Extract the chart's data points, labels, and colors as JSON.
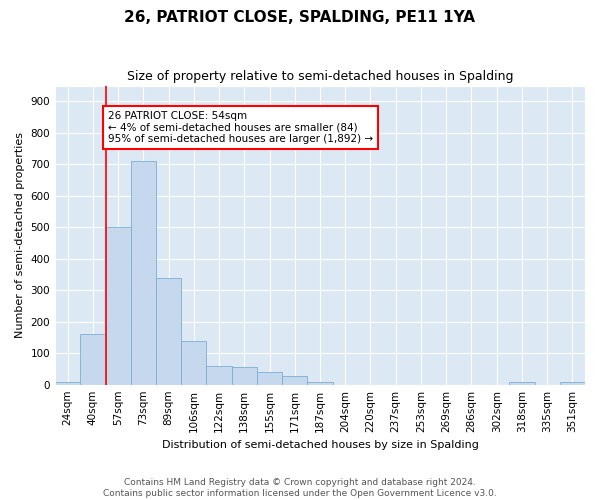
{
  "title": "26, PATRIOT CLOSE, SPALDING, PE11 1YA",
  "subtitle": "Size of property relative to semi-detached houses in Spalding",
  "xlabel": "Distribution of semi-detached houses by size in Spalding",
  "ylabel": "Number of semi-detached properties",
  "categories": [
    "24sqm",
    "40sqm",
    "57sqm",
    "73sqm",
    "89sqm",
    "106sqm",
    "122sqm",
    "138sqm",
    "155sqm",
    "171sqm",
    "187sqm",
    "204sqm",
    "220sqm",
    "237sqm",
    "253sqm",
    "269sqm",
    "286sqm",
    "302sqm",
    "318sqm",
    "335sqm",
    "351sqm"
  ],
  "values": [
    10,
    160,
    500,
    710,
    340,
    140,
    60,
    55,
    40,
    28,
    10,
    0,
    0,
    0,
    0,
    0,
    0,
    0,
    7,
    0,
    7
  ],
  "bar_color": "#c5d8ed",
  "bar_edge_color": "#7aafd4",
  "annotation_line1": "26 PATRIOT CLOSE: 54sqm",
  "annotation_line2": "← 4% of semi-detached houses are smaller (84)",
  "annotation_line3": "95% of semi-detached houses are larger (1,892) →",
  "annotation_box_color": "white",
  "annotation_border_color": "red",
  "redline_color": "red",
  "footer_line1": "Contains HM Land Registry data © Crown copyright and database right 2024.",
  "footer_line2": "Contains public sector information licensed under the Open Government Licence v3.0.",
  "ylim": [
    0,
    950
  ],
  "yticks": [
    0,
    100,
    200,
    300,
    400,
    500,
    600,
    700,
    800,
    900
  ],
  "background_color": "#dce9f5",
  "title_fontsize": 11,
  "subtitle_fontsize": 9,
  "axis_label_fontsize": 8,
  "tick_fontsize": 7.5,
  "annotation_fontsize": 7.5,
  "footer_fontsize": 6.5,
  "redline_x": 1.5,
  "figwidth": 6.0,
  "figheight": 5.0,
  "dpi": 100
}
